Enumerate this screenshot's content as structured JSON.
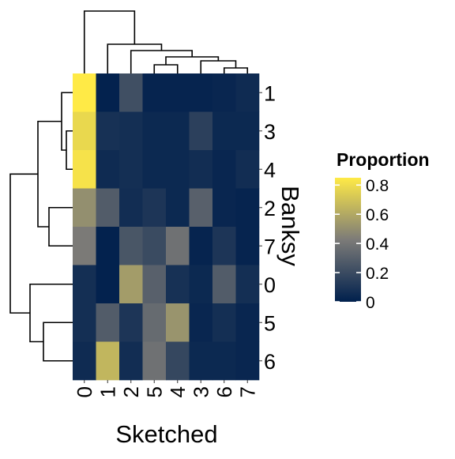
{
  "chart_data": {
    "type": "heatmap",
    "title": "",
    "xlabel": "Sketched",
    "ylabel": "Banksy",
    "x_categories": [
      "0",
      "1",
      "2",
      "5",
      "4",
      "3",
      "6",
      "7"
    ],
    "y_categories": [
      "1",
      "3",
      "4",
      "2",
      "7",
      "0",
      "5",
      "6"
    ],
    "values": [
      [
        0.85,
        0.01,
        0.22,
        0.02,
        0.02,
        0.02,
        0.03,
        0.05
      ],
      [
        0.78,
        0.08,
        0.07,
        0.04,
        0.04,
        0.15,
        0.04,
        0.04
      ],
      [
        0.82,
        0.05,
        0.07,
        0.04,
        0.04,
        0.06,
        0.03,
        0.06
      ],
      [
        0.5,
        0.28,
        0.06,
        0.1,
        0.04,
        0.3,
        0.03,
        0.02
      ],
      [
        0.42,
        0.01,
        0.25,
        0.2,
        0.38,
        0.02,
        0.1,
        0.02
      ],
      [
        0.07,
        0.01,
        0.55,
        0.3,
        0.08,
        0.04,
        0.28,
        0.07
      ],
      [
        0.07,
        0.28,
        0.1,
        0.35,
        0.52,
        0.03,
        0.07,
        0.03
      ],
      [
        0.05,
        0.65,
        0.06,
        0.38,
        0.18,
        0.04,
        0.04,
        0.03
      ]
    ],
    "colorbar": {
      "title": "Proportion",
      "ticks": [
        0,
        0.2,
        0.4,
        0.6,
        0.8
      ],
      "tick_labels": [
        "0",
        "0.2",
        "0.4",
        "0.6",
        "0.8"
      ],
      "range": [
        0,
        0.85
      ],
      "colors": [
        "#00204D",
        "#7C7B78",
        "#FFEA46"
      ]
    },
    "dendrograms": {
      "columns": true,
      "rows": true
    }
  }
}
